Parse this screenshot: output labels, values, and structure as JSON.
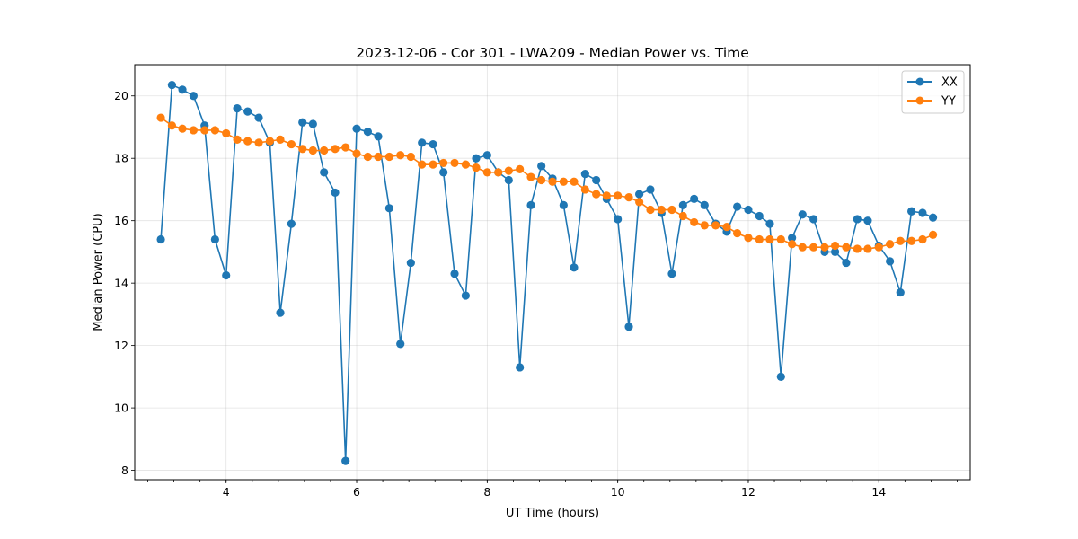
{
  "chart_data": {
    "type": "line",
    "title": "2023-12-06 - Cor 301 - LWA209 - Median Power vs. Time",
    "xlabel": "UT Time (hours)",
    "ylabel": "Median Power (CPU)",
    "xlim": [
      2.6,
      15.4
    ],
    "ylim": [
      7.7,
      21.0
    ],
    "xticks": [
      4,
      6,
      8,
      10,
      12,
      14
    ],
    "xtick_labels": [
      "4",
      "6",
      "8",
      "10",
      "12",
      "14"
    ],
    "yticks": [
      8,
      10,
      12,
      14,
      16,
      18,
      20
    ],
    "ytick_labels": [
      "8",
      "10",
      "12",
      "14",
      "16",
      "18",
      "20"
    ],
    "minor_x_step": 0.4,
    "grid": true,
    "legend_position": "top-right",
    "x": [
      3.0,
      3.17,
      3.33,
      3.5,
      3.67,
      3.83,
      4.0,
      4.17,
      4.33,
      4.5,
      4.67,
      4.83,
      5.0,
      5.17,
      5.33,
      5.5,
      5.67,
      5.83,
      6.0,
      6.17,
      6.33,
      6.5,
      6.67,
      6.83,
      7.0,
      7.17,
      7.33,
      7.5,
      7.67,
      7.83,
      8.0,
      8.17,
      8.33,
      8.5,
      8.67,
      8.83,
      9.0,
      9.17,
      9.33,
      9.5,
      9.67,
      9.83,
      10.0,
      10.17,
      10.33,
      10.5,
      10.67,
      10.83,
      11.0,
      11.17,
      11.33,
      11.5,
      11.67,
      11.83,
      12.0,
      12.17,
      12.33,
      12.5,
      12.67,
      12.83,
      13.0,
      13.17,
      13.33,
      13.5,
      13.67,
      13.83,
      14.0,
      14.17,
      14.33,
      14.5,
      14.67,
      14.83
    ],
    "series": [
      {
        "name": "XX",
        "color": "#1f77b4",
        "values": [
          15.4,
          20.35,
          20.2,
          20.0,
          19.05,
          15.4,
          14.25,
          19.6,
          19.5,
          19.3,
          18.5,
          13.05,
          15.9,
          19.15,
          19.1,
          17.55,
          16.9,
          8.3,
          18.95,
          18.85,
          18.7,
          16.4,
          12.05,
          14.65,
          18.5,
          18.45,
          17.55,
          14.3,
          13.6,
          18.0,
          18.1,
          17.55,
          17.3,
          11.3,
          16.5,
          17.75,
          17.35,
          16.5,
          14.5,
          17.5,
          17.3,
          16.7,
          16.05,
          12.6,
          16.85,
          17.0,
          16.25,
          14.3,
          16.5,
          16.7,
          16.5,
          15.9,
          15.65,
          16.45,
          16.35,
          16.15,
          15.9,
          11.0,
          15.45,
          16.2,
          16.05,
          15.0,
          15.0,
          14.65,
          16.05,
          16.0,
          15.2,
          14.7,
          13.7,
          16.3,
          16.25,
          16.1
        ]
      },
      {
        "name": "YY",
        "color": "#ff7f0e",
        "values": [
          19.3,
          19.05,
          18.95,
          18.9,
          18.9,
          18.9,
          18.8,
          18.6,
          18.55,
          18.5,
          18.55,
          18.6,
          18.45,
          18.3,
          18.25,
          18.25,
          18.3,
          18.35,
          18.15,
          18.05,
          18.05,
          18.05,
          18.1,
          18.05,
          17.8,
          17.8,
          17.85,
          17.85,
          17.8,
          17.7,
          17.55,
          17.55,
          17.6,
          17.65,
          17.4,
          17.3,
          17.25,
          17.25,
          17.25,
          17.0,
          16.85,
          16.8,
          16.8,
          16.75,
          16.6,
          16.35,
          16.35,
          16.35,
          16.15,
          15.95,
          15.85,
          15.85,
          15.8,
          15.6,
          15.45,
          15.4,
          15.4,
          15.4,
          15.25,
          15.15,
          15.15,
          15.15,
          15.2,
          15.15,
          15.1,
          15.1,
          15.15,
          15.25,
          15.35,
          15.35,
          15.4,
          15.55
        ]
      }
    ]
  }
}
